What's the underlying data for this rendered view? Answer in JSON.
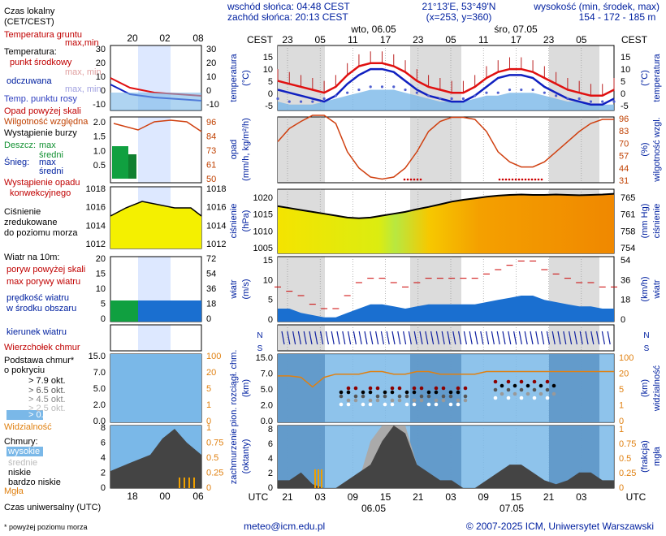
{
  "header": {
    "sunrise": "wschód słońca: 04:48 CEST",
    "sunset": "zachód słońca: 20:13 CEST",
    "coords": "21°13'E, 53°49'N",
    "grid": "(x=253, y=360)",
    "alt_label": "wysokość (min, środek, max)",
    "alt_values": "154 - 172 - 185 m",
    "day1": "wto, 06.05",
    "day2": "śro, 07.05",
    "tz_left": "CEST",
    "tz_right": "CEST",
    "utc": "UTC",
    "bottom_date1": "06.05",
    "bottom_date2": "07.05",
    "hours_top": [
      "23",
      "05",
      "11",
      "17",
      "23",
      "05",
      "11",
      "17",
      "23",
      "05"
    ],
    "hours_bottom": [
      "21",
      "03",
      "09",
      "15",
      "21",
      "03",
      "09",
      "15",
      "21",
      "03"
    ]
  },
  "legend": {
    "local_time": "Czas lokalny",
    "local_time2": "(CET/CEST)",
    "ticks_top": [
      "20",
      "02",
      "08"
    ],
    "ticks_bottom": [
      "18",
      "00",
      "06"
    ],
    "temp_ground": "Temperatura gruntu",
    "max_min": "max,min",
    "temperature": "Temperatura:",
    "mid_point": "punkt środkowy",
    "max_min2": "max, min",
    "felt": "odczuwana",
    "max_min3": "max, min",
    "dew_point": "Temp. punktu rosy",
    "precip_over": "Opad powyżej skali",
    "humidity": "Wilgotność względna",
    "storm": "Wystąpienie burzy",
    "rain": "Deszcz:",
    "max": "max",
    "mid": "średni",
    "snow": "Śnieg:",
    "max2": "max",
    "mid2": "średni",
    "conv1": "Wystąpienie opadu",
    "conv2": "konwekcyjnego",
    "pressure1": "Ciśnienie",
    "pressure2": "zredukowane",
    "pressure3": "do poziomu morza",
    "wind_label": "Wiatr na 10m:",
    "gust_over": "poryw powyżej skali",
    "gust_max": "max porywy wiatru",
    "speed1": "prędkość wiatru",
    "speed2": "w środku obszaru",
    "direction": "kierunek wiatru",
    "shear": "Wierzchołek chmur",
    "base1": "Podstawa chmur*",
    "base2": "o pokryciu",
    "okt79": "> 7.9 okt.",
    "okt65": "> 6.5 okt.",
    "okt45": "> 4.5 okt.",
    "okt25": "> 2.5 okt.",
    "okt01": "> 0.1 okt.",
    "visibility": "Widzialność",
    "clouds": "Chmury:",
    "high": "wysokie",
    "middle": "średnie",
    "low": "niskie",
    "very_low": "bardzo niskie",
    "fog": "Mgła",
    "utc_time": "Czas uniwersalny (UTC)",
    "footnote": "* powyżej poziomu morza"
  },
  "axes": {
    "temp_left": [
      "15",
      "10",
      "5",
      "0",
      "-5"
    ],
    "temp_right": [
      "15",
      "10",
      "5",
      "0",
      "-5"
    ],
    "temp_label": "temperatura",
    "temp_unit": "(°C)",
    "prec_label": "opad",
    "prec_unit": "(mm/h, kg/m²/h)",
    "hum_right": [
      "96",
      "83",
      "70",
      "57",
      "44",
      "31"
    ],
    "hum_label": "wilgotność wzgl.",
    "hum_unit": "(%)",
    "pres_left": [
      "1020",
      "1015",
      "1010",
      "1005"
    ],
    "pres_right": [
      "765",
      "761",
      "758",
      "754"
    ],
    "pres_label": "ciśnienie",
    "pres_unit": "(hPa)",
    "pres_unit2": "(mm Hg)",
    "wind_left": [
      "15",
      "10",
      "5",
      "0"
    ],
    "wind_right": [
      "54",
      "36",
      "18",
      "0"
    ],
    "wind_label": "wiatr",
    "wind_unit": "(m/s)",
    "wind_unit2": "(km/h)",
    "cloud_left": [
      "15.0",
      "7.0",
      "5.0",
      "2.0",
      "0.0"
    ],
    "cloud_right": [
      "100",
      "20",
      "5",
      "1",
      "0"
    ],
    "cloud_label": "pion. rozciągł. chm.",
    "cloud_unit": "(km)",
    "vis_label": "widzialność",
    "vis_unit": "(km)",
    "cover_left": [
      "8",
      "6",
      "4",
      "2",
      "0"
    ],
    "cover_right": [
      "1",
      "0.75",
      "0.5",
      "0.25",
      "0"
    ],
    "cover_label": "zachmurzenie",
    "cover_unit": "(oktanty)",
    "fog_label": "mgła",
    "fog_unit": "(frakcja)",
    "legend_temp_left": [
      "30",
      "20",
      "10",
      "0",
      "-10"
    ],
    "legend_temp_right": [
      "30",
      "20",
      "10",
      "0",
      "-10"
    ],
    "legend_prec_left": [
      "2.0",
      "1.5",
      "1.0",
      "0.5"
    ],
    "legend_prec_right": [
      "96",
      "84",
      "73",
      "61",
      "50"
    ],
    "legend_pres_left": [
      "1018",
      "1016",
      "1014",
      "1012"
    ],
    "legend_pres_right": [
      "1018",
      "1016",
      "1014",
      "1012"
    ],
    "legend_wind_left": [
      "20",
      "15",
      "10",
      "5",
      "0"
    ],
    "legend_wind_right": [
      "72",
      "54",
      "36",
      "18",
      "0"
    ],
    "legend_cloud_left": [
      "15.0",
      "7.0",
      "5.0",
      "2.0",
      "0.0"
    ],
    "legend_cloud_right": [
      "100",
      "20",
      "5",
      "1",
      "0"
    ],
    "legend_cover_left": [
      "8",
      "6",
      "4",
      "2",
      "0"
    ],
    "legend_cover_right": [
      "1",
      "0.75",
      "0.5",
      "0.25",
      "0"
    ]
  },
  "footer": {
    "email": "meteo@icm.edu.pl",
    "copyright": "© 2007-2025 ICM, Uniwersytet Warszawski"
  },
  "chart_data": [
    {
      "type": "line",
      "panel": "temperature",
      "x": [
        "21",
        "23",
        "01",
        "03",
        "05",
        "07",
        "09",
        "11",
        "13",
        "15",
        "17",
        "19",
        "21",
        "23",
        "01",
        "03",
        "05",
        "07",
        "09",
        "11",
        "13",
        "15",
        "17",
        "19",
        "21",
        "23",
        "01",
        "03",
        "05",
        "07"
      ],
      "series": [
        {
          "name": "punkt środkowy",
          "values": [
            5,
            4,
            3,
            2,
            1,
            3,
            7,
            10,
            11,
            11,
            10,
            8,
            5,
            3,
            2,
            1,
            1,
            3,
            6,
            8,
            9,
            9,
            8,
            6,
            4,
            2,
            1,
            0,
            0,
            2
          ]
        },
        {
          "name": "odczuwana",
          "values": [
            2,
            1,
            0,
            -1,
            -2,
            0,
            4,
            7,
            9,
            9,
            8,
            5,
            2,
            0,
            -1,
            -2,
            -2,
            0,
            3,
            6,
            7,
            7,
            6,
            3,
            1,
            -1,
            -2,
            -3,
            -3,
            -1
          ]
        },
        {
          "name": "Temp. punktu rosy",
          "values": [
            -2,
            -3,
            -3,
            -3,
            -2,
            -1,
            0,
            1,
            2,
            2,
            2,
            1,
            0,
            -1,
            -2,
            -2,
            -2,
            -1,
            0,
            0,
            1,
            1,
            1,
            0,
            -1,
            -2,
            -2,
            -3,
            -3,
            -3
          ]
        }
      ],
      "ylim": [
        -5,
        17
      ]
    },
    {
      "type": "line",
      "panel": "humidity",
      "series": [
        {
          "name": "Wilgotność względna",
          "values": [
            70,
            83,
            90,
            96,
            96,
            88,
            60,
            44,
            35,
            33,
            35,
            44,
            60,
            80,
            90,
            94,
            94,
            92,
            80,
            60,
            50,
            45,
            45,
            50,
            60,
            70,
            80,
            88,
            92,
            92
          ]
        }
      ],
      "ylim": [
        31,
        96
      ]
    },
    {
      "type": "area",
      "panel": "pressure",
      "series": [
        {
          "name": "Ciśnienie",
          "values": [
            1017.5,
            1017,
            1016.5,
            1016,
            1015.5,
            1015,
            1014.5,
            1014.3,
            1014.5,
            1015,
            1015.5,
            1016,
            1016.7,
            1017.3,
            1018,
            1018.7,
            1019.2,
            1019.6,
            1020,
            1020.3,
            1020.5,
            1020.6,
            1020.5,
            1020.5,
            1020.6,
            1020.5,
            1020.4,
            1020.5,
            1020.6,
            1020.8
          ]
        }
      ],
      "ylim": [
        1005,
        1022
      ]
    },
    {
      "type": "area",
      "panel": "wind",
      "series": [
        {
          "name": "prędkość wiatru",
          "values": [
            3,
            3,
            2,
            1.5,
            1,
            1,
            2,
            3,
            4,
            4,
            3.5,
            3,
            3.5,
            4,
            4,
            4,
            4,
            4,
            4.5,
            5,
            5.5,
            6,
            6,
            5,
            4.5,
            4,
            3.5,
            3.5,
            3,
            3
          ]
        },
        {
          "name": "max porywy wiatru",
          "values": [
            8,
            7,
            6,
            4,
            3,
            3,
            6,
            9,
            10,
            10,
            9,
            8,
            9,
            10,
            10,
            10,
            10,
            10,
            11,
            12,
            13,
            14,
            14,
            12,
            11,
            10,
            9,
            9,
            8,
            8
          ]
        }
      ],
      "ylim": [
        0,
        15
      ]
    },
    {
      "type": "line",
      "panel": "visibility",
      "series": [
        {
          "name": "Widzialność",
          "values": [
            22,
            22,
            20,
            10,
            20,
            25,
            25,
            25,
            30,
            30,
            25,
            25,
            30,
            30,
            25,
            25,
            25,
            25,
            30,
            30,
            30,
            30,
            30,
            30,
            30,
            30,
            30,
            30,
            30,
            30
          ]
        }
      ],
      "ylim": [
        0,
        100
      ]
    },
    {
      "type": "area",
      "panel": "cloud_cover",
      "series": [
        {
          "name": "niskie",
          "values": [
            1,
            1,
            2,
            0.5,
            0,
            0,
            1,
            2,
            3,
            6,
            8,
            7,
            3,
            2,
            1,
            1,
            0,
            0,
            1,
            2,
            3,
            3,
            2,
            1,
            0.5,
            1,
            2,
            2,
            1,
            1
          ]
        },
        {
          "name": "wysokie",
          "values": [
            0,
            0,
            0,
            0,
            0,
            0,
            0,
            1,
            6,
            8,
            8,
            8,
            3,
            1,
            0,
            0,
            0,
            0,
            0,
            1,
            2,
            2,
            1,
            0,
            0,
            0,
            0,
            0,
            0,
            0
          ]
        }
      ],
      "ylim": [
        0,
        8
      ]
    }
  ]
}
